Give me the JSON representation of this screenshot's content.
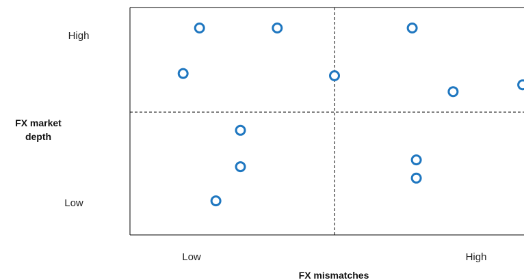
{
  "chart_data": {
    "type": "scatter",
    "title": "",
    "xlabel": "FX mismatches",
    "ylabel_lines": [
      "FX market",
      "depth"
    ],
    "x_tick_labels": {
      "low": "Low",
      "high": "High"
    },
    "y_tick_labels": {
      "high": "High",
      "low": "Low"
    },
    "xlim": [
      0,
      10
    ],
    "ylim": [
      0,
      10
    ],
    "dividers": {
      "x": 5,
      "y": 5.4
    },
    "grid": false,
    "legend": "none",
    "marker": {
      "shape": "hollow-circle",
      "color": "#1F77C0"
    },
    "points": [
      {
        "x": 1.7,
        "y": 9.1
      },
      {
        "x": 3.6,
        "y": 9.1
      },
      {
        "x": 6.9,
        "y": 9.1
      },
      {
        "x": 1.3,
        "y": 7.1
      },
      {
        "x": 5.0,
        "y": 7.0
      },
      {
        "x": 7.9,
        "y": 6.3
      },
      {
        "x": 9.6,
        "y": 6.6
      },
      {
        "x": 2.7,
        "y": 4.6
      },
      {
        "x": 2.7,
        "y": 3.0
      },
      {
        "x": 7.0,
        "y": 3.3
      },
      {
        "x": 7.0,
        "y": 2.5
      },
      {
        "x": 2.1,
        "y": 1.5
      }
    ]
  }
}
